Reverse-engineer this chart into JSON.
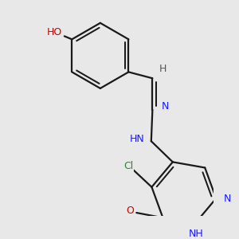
{
  "background_color": "#e8e8e8",
  "atom_colors": {
    "C": "#000000",
    "N": "#1a1aff",
    "O": "#cc0000",
    "H": "#555555",
    "Cl": "#228B22"
  },
  "bond_color": "#1a1a1a",
  "bond_width": 1.6,
  "figsize": [
    3.0,
    3.0
  ],
  "dpi": 100,
  "xlim": [
    -0.3,
    2.8
  ],
  "ylim": [
    -0.2,
    3.2
  ]
}
